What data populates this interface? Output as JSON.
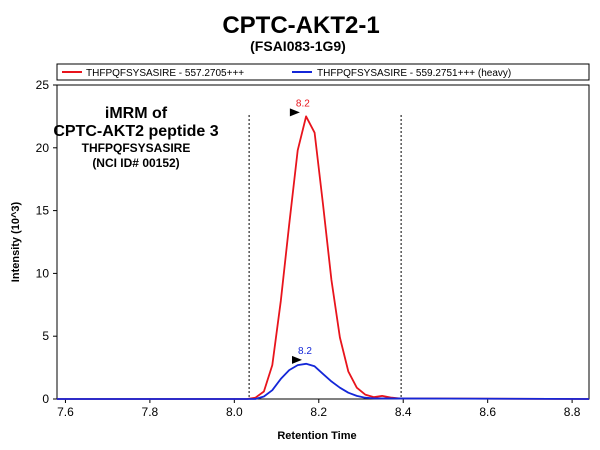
{
  "chart_data": {
    "type": "line",
    "title": "CPTC-AKT2-1",
    "subtitle": "(FSAI083-1G9)",
    "xlabel": "Retention Time",
    "ylabel": "Intensity (10^3)",
    "xlim": [
      7.58,
      8.84
    ],
    "ylim": [
      0,
      25
    ],
    "xticks": [
      "7.6",
      "7.8",
      "8.0",
      "8.2",
      "8.4",
      "8.6",
      "8.8"
    ],
    "yticks": [
      "0",
      "5",
      "10",
      "15",
      "20",
      "25"
    ],
    "legend_position": "top",
    "annotations": [
      "iMRM of",
      "CPTC-AKT2 peptide 3",
      "THFPQFSYSASIRE",
      "(NCI ID# 00152)"
    ],
    "boundaries": [
      8.035,
      8.395
    ],
    "series": [
      {
        "name": "THFPQFSYSASIRE - 557.2705+++",
        "color": "#e8141c",
        "peak_label": "8.2",
        "peak_x": 8.16,
        "peak_y": 22.5,
        "x": [
          7.58,
          8.03,
          8.05,
          8.07,
          8.09,
          8.11,
          8.13,
          8.15,
          8.17,
          8.19,
          8.21,
          8.23,
          8.25,
          8.27,
          8.29,
          8.31,
          8.33,
          8.35,
          8.37,
          8.39,
          8.84
        ],
        "y": [
          0,
          0,
          0.1,
          0.6,
          2.7,
          7.8,
          13.9,
          19.8,
          22.5,
          21.2,
          15.5,
          9.5,
          4.9,
          2.2,
          0.9,
          0.35,
          0.15,
          0.25,
          0.12,
          0.05,
          0
        ]
      },
      {
        "name": "THFPQFSYSASIRE - 559.2751+++ (heavy)",
        "color": "#1427d8",
        "peak_label": "8.2",
        "peak_x": 8.165,
        "peak_y": 2.8,
        "x": [
          7.58,
          8.05,
          8.07,
          8.09,
          8.11,
          8.13,
          8.15,
          8.17,
          8.19,
          8.21,
          8.23,
          8.25,
          8.27,
          8.29,
          8.31,
          8.33,
          8.84
        ],
        "y": [
          0,
          0,
          0.2,
          0.7,
          1.6,
          2.3,
          2.7,
          2.8,
          2.6,
          2.0,
          1.4,
          0.9,
          0.5,
          0.25,
          0.1,
          0.05,
          0
        ]
      }
    ]
  }
}
